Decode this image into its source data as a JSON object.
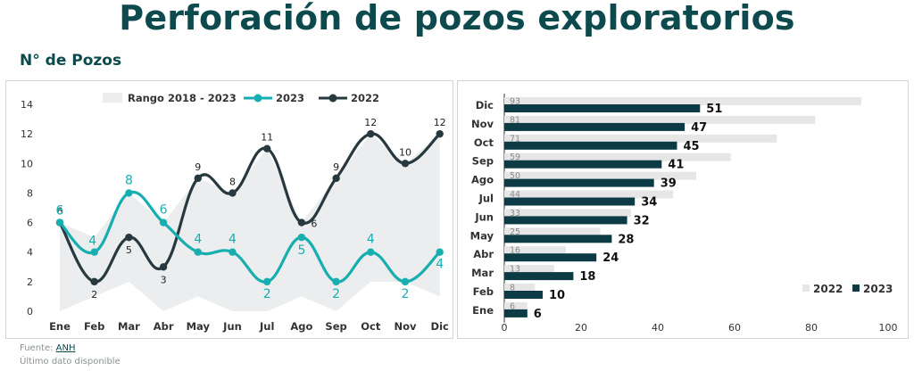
{
  "page": {
    "title": "Perforación de pozos exploratorios",
    "subtitle": "N° de Pozos",
    "footer_source_label": "Fuente:",
    "footer_source_link": "ANH",
    "footer_note": "Último dato disponible"
  },
  "colors": {
    "title": "#0d4a4e",
    "series_2022": "#27393f",
    "series_2023": "#17aeb0",
    "range_fill": "#ebedee",
    "bar_2022": "#e6e6e6",
    "bar_2023": "#0d3b45"
  },
  "chart_data": [
    {
      "type": "line",
      "categories": [
        "Ene",
        "Feb",
        "Mar",
        "Abr",
        "May",
        "Jun",
        "Jul",
        "Ago",
        "Sep",
        "Oct",
        "Nov",
        "Dic"
      ],
      "series": [
        {
          "name": "2023",
          "values": [
            6,
            4,
            8,
            6,
            4,
            4,
            2,
            5,
            2,
            4,
            2,
            4
          ]
        },
        {
          "name": "2022",
          "values": [
            6,
            2,
            5,
            3,
            9,
            8,
            11,
            6,
            9,
            12,
            10,
            12
          ]
        }
      ],
      "range": {
        "name": "Rango 2018 - 2023",
        "min": [
          0,
          1,
          2,
          0,
          1,
          0,
          0,
          1,
          0,
          2,
          2,
          1
        ],
        "max": [
          6,
          5,
          8,
          6,
          9,
          8,
          11,
          6,
          9,
          12,
          10,
          12
        ]
      },
      "ylim": [
        0,
        14
      ],
      "yticks": [
        "0",
        "2",
        "4",
        "6",
        "8",
        "10",
        "12",
        "14"
      ],
      "legend": [
        "Rango 2018 - 2023",
        "2023",
        "2022"
      ],
      "legend_position": "top"
    },
    {
      "type": "bar",
      "orientation": "horizontal",
      "categories": [
        "Dic",
        "Nov",
        "Oct",
        "Sep",
        "Ago",
        "Jul",
        "Jun",
        "May",
        "Abr",
        "Mar",
        "Feb",
        "Ene"
      ],
      "series": [
        {
          "name": "2022",
          "values": [
            93,
            81,
            71,
            59,
            50,
            44,
            33,
            25,
            16,
            13,
            8,
            6
          ]
        },
        {
          "name": "2023",
          "values": [
            51,
            47,
            45,
            41,
            39,
            34,
            32,
            28,
            24,
            18,
            10,
            6
          ]
        }
      ],
      "xlim": [
        0,
        100
      ],
      "xticks": [
        "0",
        "20",
        "40",
        "60",
        "80",
        "100"
      ],
      "legend": [
        "2022",
        "2023"
      ],
      "legend_position": "bottom-right"
    }
  ]
}
